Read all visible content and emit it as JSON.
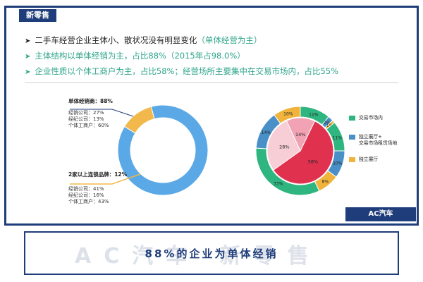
{
  "header_tag": "新零售",
  "bullets": [
    {
      "text": "二手车经营企业主体小、散状况没有明显变化",
      "highlight": "（单体经营为主）"
    },
    {
      "text": "主体结构以单体经销为主，占比88%（2015年占98.0%）",
      "highlight": ""
    },
    {
      "text": "企业性质以个体工商户为主，占比58%；经营场所主要集中在交易市场内，占比55%",
      "highlight": ""
    }
  ],
  "left_annotations": {
    "single": {
      "head": "单体经销商：88%",
      "lines": [
        "经销公司：27%",
        "经纪公司：13%",
        "个体工商户：60%"
      ]
    },
    "chain": {
      "head": "2家以上连锁品牌：12%",
      "lines": [
        "经销公司：41%",
        "经纪公司：16%",
        "个体工商户：43%"
      ]
    }
  },
  "legend": [
    {
      "label": "交易市场内",
      "color": "#2fb57f"
    },
    {
      "label": "独立展厅+\n交易市场租赁场地",
      "color": "#4a90c8"
    },
    {
      "label": "独立展厅",
      "color": "#f0b43c"
    }
  ],
  "logo_text": "AC汽车",
  "watermark": "AC汽车 新零售",
  "bottom_text": "88%的企业为单体经销",
  "colors": {
    "primary": "#1f3d7a",
    "accent_green": "#2fa58b",
    "single_blue": "#5aa9e6",
    "chain_yellow": "#f2b84b"
  },
  "chart_data": [
    {
      "type": "pie",
      "subtype": "donut",
      "title": "",
      "slices": [
        {
          "label": "单体经销商",
          "value": 88,
          "color": "#5aa9e6"
        },
        {
          "label": "2家以上连锁品牌",
          "value": 12,
          "color": "#f2b84b"
        }
      ]
    },
    {
      "type": "pie",
      "subtype": "nested",
      "title": "",
      "inner": [
        {
          "label": "",
          "value": 58,
          "display": "58%",
          "color": "#e0324f"
        },
        {
          "label": "",
          "value": 28,
          "display": "28%",
          "color": "#f7cdd6"
        },
        {
          "label": "",
          "value": 14,
          "display": "14%",
          "color": "#f1a2b3"
        }
      ],
      "outer": [
        {
          "value": 11,
          "display": "11%",
          "color": "#2fb57f"
        },
        {
          "value": 2,
          "display": "2%",
          "color": "#4a90c8"
        },
        {
          "value": 1,
          "display": "1%",
          "color": "#f0b43c"
        },
        {
          "value": 11,
          "display": "11%",
          "color": "#2fb57f"
        },
        {
          "value": 10,
          "display": "10%",
          "color": "#4a90c8"
        },
        {
          "value": 8,
          "display": "8%",
          "color": "#f0b43c"
        },
        {
          "value": 33,
          "display": "33%",
          "color": "#2fb57f"
        },
        {
          "value": 14,
          "display": "14%",
          "color": "#4a90c8"
        },
        {
          "value": 10,
          "display": "10%",
          "color": "#f0b43c"
        }
      ]
    }
  ]
}
